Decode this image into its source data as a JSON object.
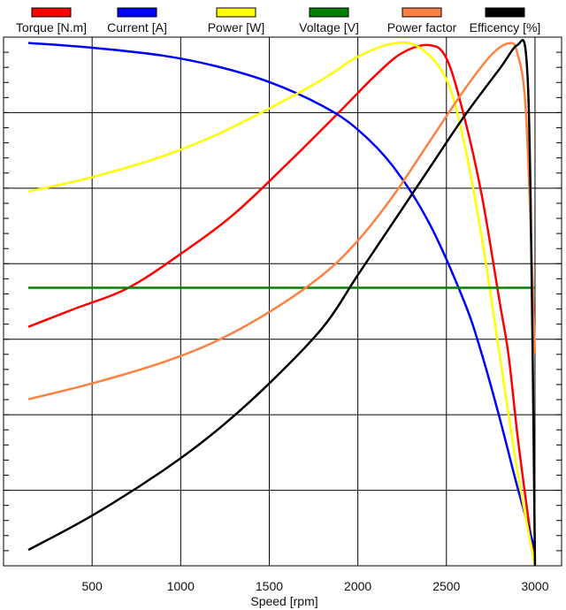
{
  "chart_data": {
    "type": "line",
    "title": "",
    "xlabel": "Speed [rpm]",
    "ylabel": "",
    "xlim": [
      0,
      3150
    ],
    "ylim": [
      0,
      100
    ],
    "x_ticks": [
      500,
      1000,
      1500,
      2000,
      2500,
      3000
    ],
    "x_tick_labels": [
      "500",
      "1000",
      "1500",
      "2000",
      "2500",
      "3000"
    ],
    "grid": true,
    "legend_position": "top",
    "series": [
      {
        "name": "Torque [N.m]",
        "color": "#ff0000",
        "points": [
          [
            140,
            45.2
          ],
          [
            400,
            48.6
          ],
          [
            700,
            52.5
          ],
          [
            1000,
            59
          ],
          [
            1300,
            66.5
          ],
          [
            1600,
            76
          ],
          [
            1900,
            86
          ],
          [
            2100,
            92.8
          ],
          [
            2250,
            97
          ],
          [
            2400,
            98.5
          ],
          [
            2500,
            96
          ],
          [
            2600,
            85
          ],
          [
            2700,
            70
          ],
          [
            2800,
            50
          ],
          [
            2850,
            40
          ],
          [
            2900,
            25
          ],
          [
            2950,
            12
          ],
          [
            3000,
            0
          ]
        ]
      },
      {
        "name": "Current [A]",
        "color": "#0000ff",
        "points": [
          [
            140,
            98.9
          ],
          [
            500,
            98
          ],
          [
            900,
            96.5
          ],
          [
            1200,
            94.5
          ],
          [
            1500,
            91.5
          ],
          [
            1800,
            87
          ],
          [
            2000,
            82.5
          ],
          [
            2200,
            75.5
          ],
          [
            2400,
            65
          ],
          [
            2600,
            50
          ],
          [
            2700,
            40
          ],
          [
            2800,
            28
          ],
          [
            2900,
            15
          ],
          [
            3000,
            3
          ]
        ]
      },
      {
        "name": "Power [W]",
        "color": "#ffff00",
        "points": [
          [
            140,
            70.8
          ],
          [
            500,
            73.5
          ],
          [
            900,
            77.5
          ],
          [
            1200,
            81.5
          ],
          [
            1500,
            86.5
          ],
          [
            1800,
            92
          ],
          [
            2000,
            96.3
          ],
          [
            2200,
            98.8
          ],
          [
            2350,
            98
          ],
          [
            2500,
            92
          ],
          [
            2600,
            80
          ],
          [
            2700,
            62
          ],
          [
            2800,
            40
          ],
          [
            2900,
            18
          ],
          [
            3000,
            0
          ]
        ]
      },
      {
        "name": "Voltage [V]",
        "color": "#008000",
        "points": [
          [
            140,
            52.6
          ],
          [
            3000,
            52.6
          ]
        ]
      },
      {
        "name": "Power factor",
        "color": "#ff8040",
        "points": [
          [
            140,
            31.5
          ],
          [
            500,
            34.5
          ],
          [
            900,
            38.5
          ],
          [
            1200,
            42.5
          ],
          [
            1500,
            48
          ],
          [
            1800,
            55
          ],
          [
            2000,
            61.5
          ],
          [
            2200,
            70
          ],
          [
            2400,
            80
          ],
          [
            2600,
            90
          ],
          [
            2750,
            96.5
          ],
          [
            2850,
            98.8
          ],
          [
            2900,
            97
          ],
          [
            2950,
            85
          ],
          [
            3000,
            40
          ]
        ]
      },
      {
        "name": "Efficency [%]",
        "color": "#000000",
        "points": [
          [
            140,
            3
          ],
          [
            500,
            9.5
          ],
          [
            900,
            18
          ],
          [
            1200,
            25.5
          ],
          [
            1500,
            34.5
          ],
          [
            1800,
            45
          ],
          [
            2000,
            55
          ],
          [
            2200,
            65
          ],
          [
            2400,
            75
          ],
          [
            2600,
            85
          ],
          [
            2800,
            94
          ],
          [
            2900,
            98.5
          ],
          [
            2950,
            96.5
          ],
          [
            2975,
            70
          ],
          [
            3000,
            0
          ]
        ]
      }
    ]
  }
}
